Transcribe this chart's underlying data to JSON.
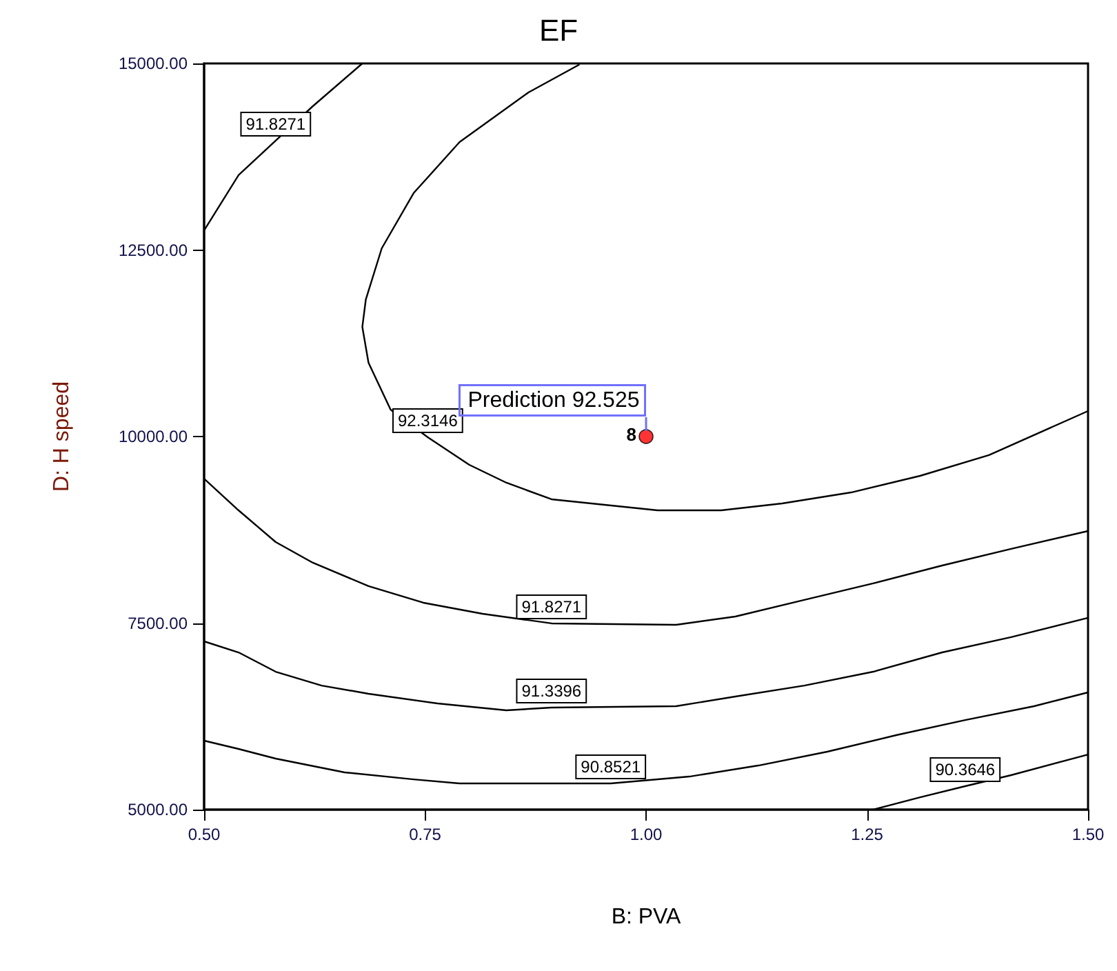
{
  "chart_data": {
    "type": "line",
    "title": "EF",
    "xlabel": "B: PVA",
    "ylabel": "D: H speed",
    "xlim": [
      0.5,
      1.5
    ],
    "xticks": [
      {
        "value": 0.5,
        "label": "0.50"
      },
      {
        "value": 0.75,
        "label": "0.75"
      },
      {
        "value": 1.0,
        "label": "1.00"
      },
      {
        "value": 1.25,
        "label": "1.25"
      },
      {
        "value": 1.5,
        "label": "1.50"
      }
    ],
    "ylim": [
      5000,
      15000
    ],
    "yticks": [
      {
        "value": 5000,
        "label": "5000.00"
      },
      {
        "value": 7500,
        "label": "7500.00"
      },
      {
        "value": 10000,
        "label": "10000.00"
      },
      {
        "value": 12500,
        "label": "12500.00"
      },
      {
        "value": 15000,
        "label": "15000.00"
      }
    ],
    "grid": false,
    "legend": false,
    "marker": "none",
    "line_style": "solid",
    "series": [
      {
        "name": "91.8271",
        "color": "#000000",
        "x": [
          0.5,
          0.539,
          0.581,
          0.623,
          0.679
        ],
        "values": [
          12763,
          13503,
          13965,
          14427,
          15000
        ]
      },
      {
        "name": "92.3146",
        "color": "#000000",
        "x": [
          0.924,
          0.867,
          0.789,
          0.737,
          0.701,
          0.683,
          0.679,
          0.686,
          0.711,
          0.753,
          0.8,
          0.842,
          0.893,
          1.013,
          1.085,
          1.154,
          1.232,
          1.31,
          1.388,
          1.5
        ],
        "values": [
          14982,
          14612,
          13946,
          13262,
          12523,
          11839,
          11469,
          10989,
          10360,
          9991,
          9621,
          9381,
          9159,
          9011,
          9011,
          9104,
          9251,
          9473,
          9751,
          10342
        ]
      },
      {
        "name": "91.8271",
        "color": "#000000",
        "x": [
          0.5,
          0.539,
          0.581,
          0.623,
          0.686,
          0.748,
          0.815,
          0.893,
          1.034,
          1.101,
          1.179,
          1.257,
          1.335,
          1.413,
          1.5
        ],
        "values": [
          9436,
          9011,
          8586,
          8309,
          7995,
          7773,
          7625,
          7496,
          7477,
          7588,
          7810,
          8032,
          8272,
          8494,
          8734
        ]
      },
      {
        "name": "91.3396",
        "color": "#000000",
        "x": [
          0.5,
          0.539,
          0.581,
          0.633,
          0.686,
          0.764,
          0.842,
          0.893,
          1.034,
          1.101,
          1.179,
          1.257,
          1.335,
          1.413,
          1.5
        ],
        "values": [
          7255,
          7107,
          6848,
          6663,
          6553,
          6423,
          6331,
          6368,
          6386,
          6516,
          6663,
          6848,
          7107,
          7311,
          7570
        ]
      },
      {
        "name": "90.8521",
        "color": "#000000",
        "x": [
          0.5,
          0.539,
          0.581,
          0.659,
          0.737,
          0.789,
          0.893,
          0.96,
          1.049,
          1.127,
          1.205,
          1.283,
          1.361,
          1.439,
          1.5
        ],
        "values": [
          5924,
          5813,
          5684,
          5499,
          5406,
          5351,
          5351,
          5351,
          5443,
          5591,
          5776,
          5998,
          6201,
          6386,
          6571
        ]
      },
      {
        "name": "90.3646",
        "color": "#000000",
        "x": [
          1.257,
          1.31,
          1.361,
          1.413,
          1.5
        ],
        "values": [
          5000,
          5166,
          5314,
          5462,
          5739
        ]
      },
      {
        "type": "scatter",
        "color": "#ff0000",
        "marker": "circle",
        "x": [
          1.0
        ],
        "values": [
          10000
        ]
      }
    ],
    "annotations": [
      {
        "text": "Prediction 92.525",
        "x": 1.0,
        "y": 10000
      },
      {
        "text": "8",
        "x": 1.0,
        "y": 10000
      }
    ]
  }
}
